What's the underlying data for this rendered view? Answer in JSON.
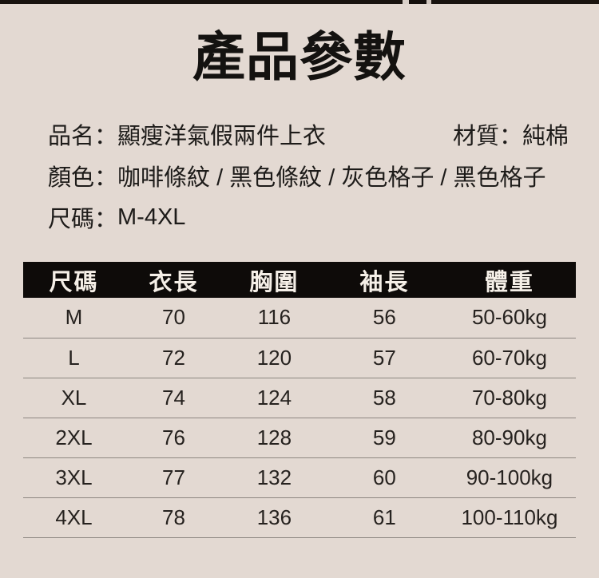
{
  "colors": {
    "background": "#e3d9d2",
    "text": "#1d1b19",
    "table_header_bg": "#0e0b09",
    "table_header_text": "#f5efe7",
    "divider": "#8d8781",
    "photo_strip": "#19130f"
  },
  "title": "產品參數",
  "info": {
    "name_label": "品名：",
    "name_value": "顯瘦洋氣假兩件上衣",
    "material_label": "材質：",
    "material_value": "純棉",
    "color_label": "顏色：",
    "color_value": "咖啡條紋 / 黑色條紋 / 灰色格子 / 黑色格子",
    "size_label": "尺碼：",
    "size_value": "M-4XL"
  },
  "table": {
    "columns": [
      "尺碼",
      "衣長",
      "胸圍",
      "袖長",
      "體重"
    ],
    "rows": [
      [
        "M",
        "70",
        "116",
        "56",
        "50-60kg"
      ],
      [
        "L",
        "72",
        "120",
        "57",
        "60-70kg"
      ],
      [
        "XL",
        "74",
        "124",
        "58",
        "70-80kg"
      ],
      [
        "2XL",
        "76",
        "128",
        "59",
        "80-90kg"
      ],
      [
        "3XL",
        "77",
        "132",
        "60",
        "90-100kg"
      ],
      [
        "4XL",
        "78",
        "136",
        "61",
        "100-110kg"
      ]
    ]
  }
}
